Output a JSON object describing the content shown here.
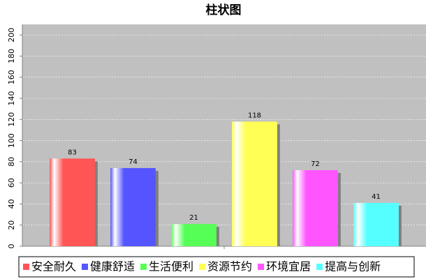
{
  "chart_data": {
    "type": "bar",
    "title": "柱状图",
    "categories": [
      null
    ],
    "series": [
      {
        "name": "安全耐久",
        "color": "#ff5555",
        "values": [
          83
        ]
      },
      {
        "name": "健康舒适",
        "color": "#5555ff",
        "values": [
          74
        ]
      },
      {
        "name": "生活便利",
        "color": "#55ff55",
        "values": [
          21
        ]
      },
      {
        "name": "资源节约",
        "color": "#ffff55",
        "values": [
          118
        ]
      },
      {
        "name": "环境宜居",
        "color": "#ff55ff",
        "values": [
          72
        ]
      },
      {
        "name": "提高与创新",
        "color": "#55ffff",
        "values": [
          41
        ]
      }
    ],
    "ylim": [
      0,
      210
    ],
    "yticks": [
      0,
      20,
      40,
      60,
      80,
      100,
      120,
      140,
      160,
      180,
      200
    ],
    "grid": true
  }
}
